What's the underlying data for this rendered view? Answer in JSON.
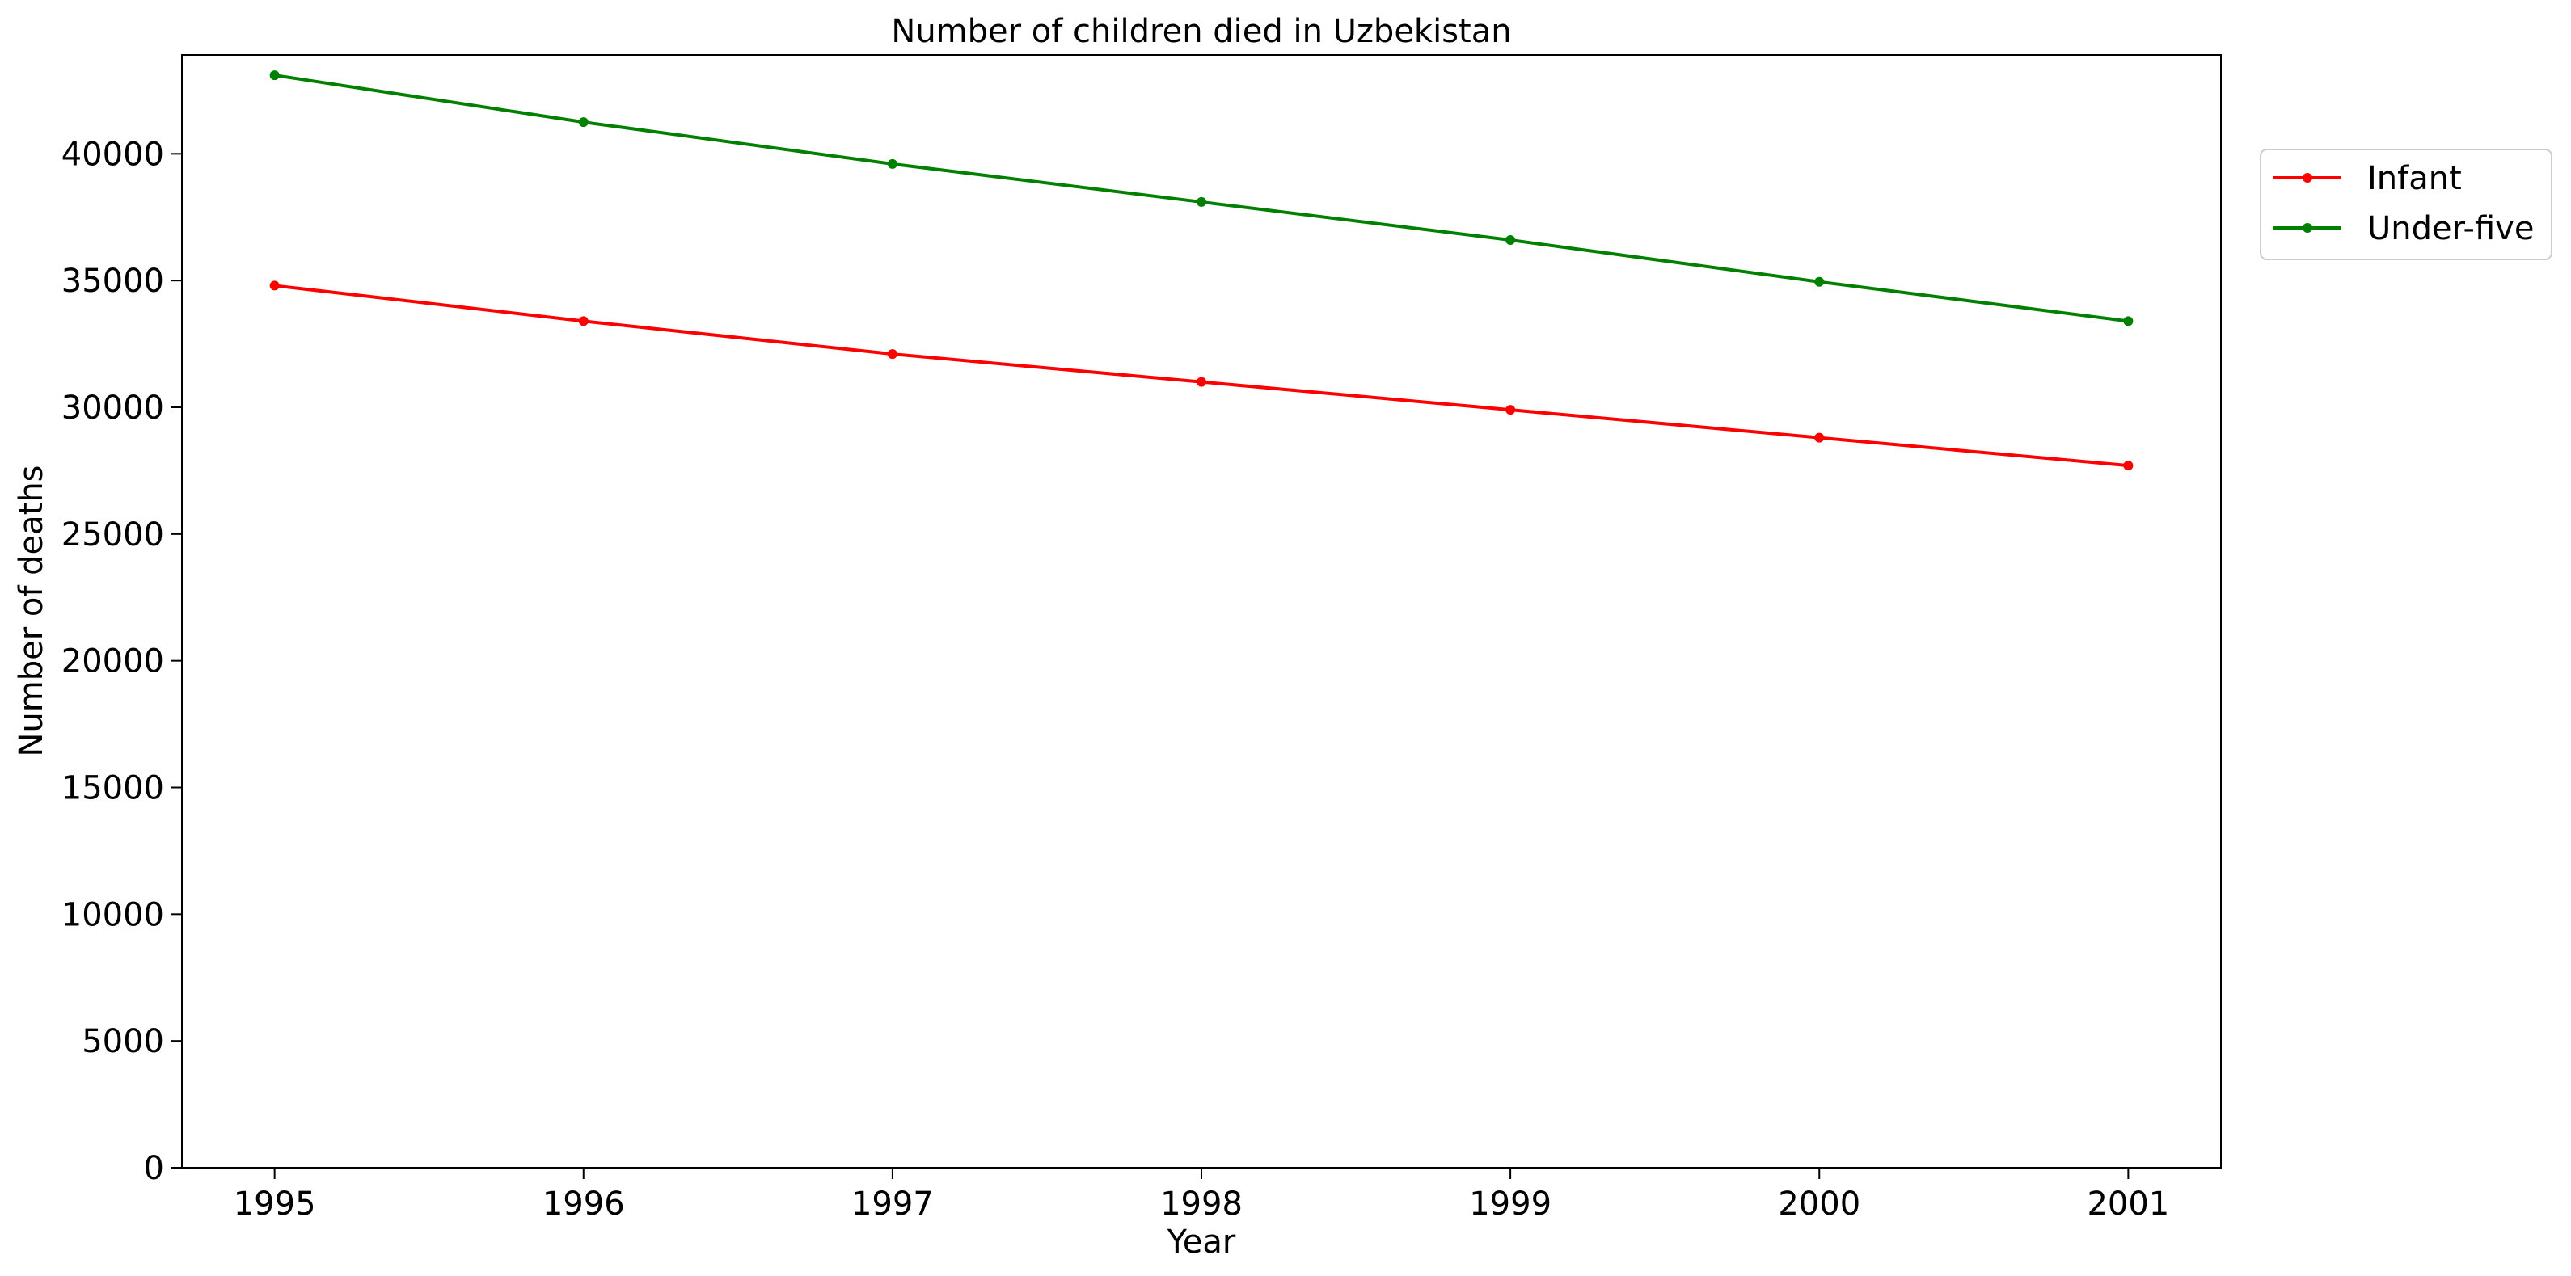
{
  "chart_data": {
    "type": "line",
    "title": "Number of children died in Uzbekistan",
    "xlabel": "Year",
    "ylabel": "Number of deaths",
    "x": [
      "1995",
      "1996",
      "1997",
      "1998",
      "1999",
      "2000",
      "2001"
    ],
    "xlim": [
      1994.7,
      2001.3
    ],
    "ylim": [
      0,
      43900
    ],
    "yticks": [
      0,
      5000,
      10000,
      15000,
      20000,
      25000,
      30000,
      35000,
      40000
    ],
    "grid": false,
    "legend_position": "outside-right-top",
    "series": [
      {
        "name": "Infant",
        "color": "#ff0000",
        "marker": "circle",
        "values": [
          34800,
          33400,
          32100,
          31000,
          29900,
          28800,
          27700
        ]
      },
      {
        "name": "Under-five",
        "color": "#008000",
        "marker": "circle",
        "values": [
          43100,
          41250,
          39600,
          38100,
          36600,
          34950,
          33400
        ]
      }
    ]
  }
}
